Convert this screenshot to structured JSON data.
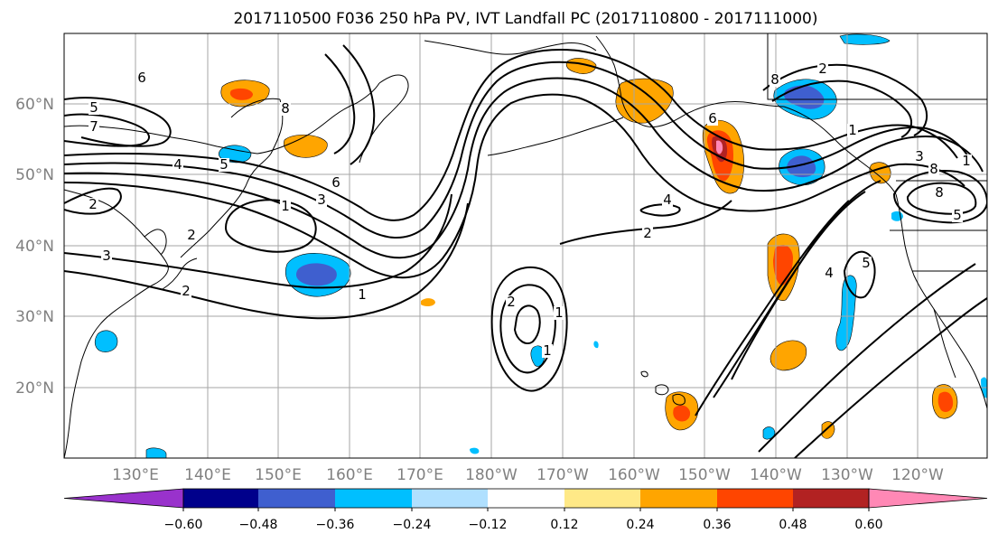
{
  "title": "2017110500 F036 250 hPa PV, IVT Landfall PC (2017110800 - 2017111000)",
  "map": {
    "lat_ticks": [
      "20°N",
      "30°N",
      "40°N",
      "50°N",
      "60°N"
    ],
    "lon_ticks": [
      "130°E",
      "140°E",
      "150°E",
      "160°E",
      "170°E",
      "180°W",
      "170°W",
      "160°W",
      "150°W",
      "140°W",
      "130°W",
      "120°W"
    ],
    "grid": true,
    "contour_labels": [
      "6",
      "5",
      "7",
      "8",
      "4",
      "5",
      "6",
      "3",
      "1",
      "2",
      "2",
      "1",
      "2",
      "1",
      "2",
      "3",
      "1",
      "2",
      "4",
      "2",
      "8",
      "6",
      "8",
      "1",
      "4",
      "5",
      "3",
      "1",
      "8",
      "5"
    ]
  },
  "colorbar": {
    "tick_labels": [
      "−0.60",
      "−0.48",
      "−0.36",
      "−0.24",
      "−0.12",
      "0.12",
      "0.24",
      "0.36",
      "0.48",
      "0.60"
    ],
    "bins": [
      "#9932cc",
      "#00008b",
      "#3f5fcf",
      "#00bfff",
      "#b0e0ff",
      "#ffffff",
      "#ffe987",
      "#ffa500",
      "#ff4500",
      "#b22222",
      "#ff88b5"
    ]
  },
  "colors": {
    "neg_strong": "#3f5fcf",
    "neg_mid": "#00bfff",
    "neg_weak": "#b0e0ff",
    "pos_weak": "#ffe987",
    "pos_mid": "#ffa500",
    "pos_strong": "#ff4500",
    "pos_max": "#b22222",
    "pos_peak": "#ff88b5"
  }
}
